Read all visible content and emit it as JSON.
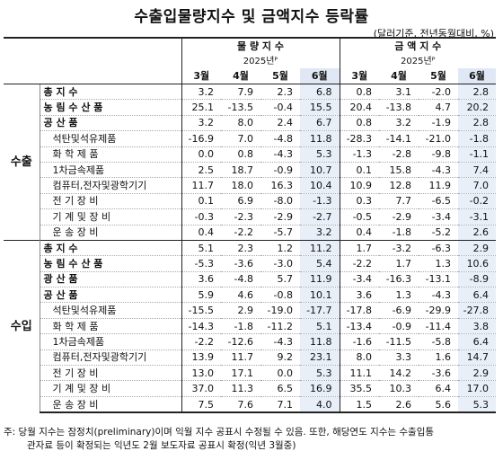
{
  "title": "수출입물량지수 및 금액지수 등락률",
  "unit": "(달러기준, 전년동월대비, %)",
  "headers": {
    "volume": "물 량 지 수",
    "value": "금 액 지 수",
    "year": "2025년ᴾ",
    "months": [
      "3월",
      "4월",
      "5월",
      "6월"
    ]
  },
  "sections": [
    {
      "name": "수출",
      "rows": [
        {
          "label": "총 지 수",
          "style": "bold",
          "vol": [
            "3.2",
            "7.9",
            "2.3",
            "6.8"
          ],
          "val": [
            "0.8",
            "3.1",
            "-2.0",
            "2.8"
          ]
        },
        {
          "label": "농 림 수 산 품",
          "style": "bold",
          "vol": [
            "25.1",
            "-13.5",
            "-0.4",
            "15.5"
          ],
          "val": [
            "20.4",
            "-13.8",
            "4.7",
            "20.2"
          ]
        },
        {
          "label": "공 산 품",
          "style": "bold",
          "vol": [
            "3.2",
            "8.0",
            "2.4",
            "6.7"
          ],
          "val": [
            "0.8",
            "3.2",
            "-1.9",
            "2.8"
          ]
        },
        {
          "label": "석탄및석유제품",
          "style": "sub",
          "vol": [
            "-16.9",
            "7.0",
            "-4.8",
            "11.8"
          ],
          "val": [
            "-28.3",
            "-14.1",
            "-21.0",
            "-1.8"
          ]
        },
        {
          "label": "화 학 제 품",
          "style": "sub",
          "vol": [
            "0.0",
            "0.8",
            "-4.3",
            "5.3"
          ],
          "val": [
            "-1.3",
            "-2.8",
            "-9.8",
            "-1.1"
          ]
        },
        {
          "label": "1차금속제품",
          "style": "sub",
          "vol": [
            "2.5",
            "18.7",
            "-0.9",
            "10.7"
          ],
          "val": [
            "0.1",
            "15.8",
            "-4.3",
            "7.4"
          ]
        },
        {
          "label": "컴퓨터,전자및광학기기",
          "style": "sub",
          "vol": [
            "11.7",
            "18.0",
            "16.3",
            "10.4"
          ],
          "val": [
            "10.9",
            "12.8",
            "11.9",
            "7.0"
          ]
        },
        {
          "label": "전 기 장 비",
          "style": "sub",
          "vol": [
            "0.1",
            "6.9",
            "-8.0",
            "-1.3"
          ],
          "val": [
            "0.3",
            "7.7",
            "-6.5",
            "-0.2"
          ]
        },
        {
          "label": "기 계 및 장 비",
          "style": "sub",
          "vol": [
            "-0.3",
            "-2.3",
            "-2.9",
            "-2.7"
          ],
          "val": [
            "-0.5",
            "-2.9",
            "-3.4",
            "-3.1"
          ]
        },
        {
          "label": "운 송 장 비",
          "style": "sub",
          "vol": [
            "0.4",
            "-2.2",
            "-5.7",
            "3.2"
          ],
          "val": [
            "0.4",
            "-1.8",
            "-5.2",
            "2.6"
          ]
        }
      ]
    },
    {
      "name": "수입",
      "rows": [
        {
          "label": "총 지 수",
          "style": "bold",
          "vol": [
            "5.1",
            "2.3",
            "1.2",
            "11.2"
          ],
          "val": [
            "1.7",
            "-3.2",
            "-6.3",
            "2.9"
          ]
        },
        {
          "label": "농 림 수 산 품",
          "style": "bold",
          "vol": [
            "-5.3",
            "-3.6",
            "-3.0",
            "5.4"
          ],
          "val": [
            "-2.2",
            "1.7",
            "1.3",
            "10.6"
          ]
        },
        {
          "label": "광 산 품",
          "style": "bold",
          "vol": [
            "3.6",
            "-4.8",
            "5.7",
            "11.9"
          ],
          "val": [
            "-3.4",
            "-16.3",
            "-13.1",
            "-8.9"
          ]
        },
        {
          "label": "공 산 품",
          "style": "bold",
          "vol": [
            "5.9",
            "4.6",
            "-0.8",
            "10.1"
          ],
          "val": [
            "3.6",
            "1.3",
            "-4.3",
            "6.4"
          ]
        },
        {
          "label": "석탄및석유제품",
          "style": "sub",
          "vol": [
            "-15.5",
            "2.9",
            "-19.0",
            "-17.7"
          ],
          "val": [
            "-17.8",
            "-6.9",
            "-29.9",
            "-27.8"
          ]
        },
        {
          "label": "화 학 제 품",
          "style": "sub",
          "vol": [
            "-14.3",
            "-1.8",
            "-11.2",
            "5.1"
          ],
          "val": [
            "-13.4",
            "-0.9",
            "-11.4",
            "3.8"
          ]
        },
        {
          "label": "1차금속제품",
          "style": "sub",
          "vol": [
            "-2.2",
            "-12.6",
            "-4.3",
            "11.8"
          ],
          "val": [
            "-1.6",
            "-11.5",
            "-5.8",
            "6.4"
          ]
        },
        {
          "label": "컴퓨터,전자및광학기기",
          "style": "sub",
          "vol": [
            "13.9",
            "11.7",
            "9.2",
            "23.1"
          ],
          "val": [
            "8.0",
            "3.3",
            "1.6",
            "14.7"
          ]
        },
        {
          "label": "전 기 장 비",
          "style": "sub",
          "vol": [
            "13.0",
            "17.1",
            "0.0",
            "5.3"
          ],
          "val": [
            "11.1",
            "14.2",
            "-3.6",
            "2.9"
          ]
        },
        {
          "label": "기 계 및 장 비",
          "style": "sub",
          "vol": [
            "37.0",
            "11.3",
            "6.5",
            "16.9"
          ],
          "val": [
            "35.5",
            "10.3",
            "6.4",
            "17.0"
          ]
        },
        {
          "label": "운 송 장 비",
          "style": "sub",
          "vol": [
            "7.5",
            "7.6",
            "7.1",
            "4.0"
          ],
          "val": [
            "1.5",
            "2.6",
            "5.6",
            "5.3"
          ]
        }
      ]
    }
  ],
  "note": {
    "line1": "주: 당월 지수는 잠정치(preliminary)이며 익월 지수 공표시 수정될 수 있음. 또한, 해당연도 지수는 수출입통",
    "line2": "관자료 등이 확정되는 익년도 2월 보도자료 공표시 확정(익년 3월중)"
  }
}
